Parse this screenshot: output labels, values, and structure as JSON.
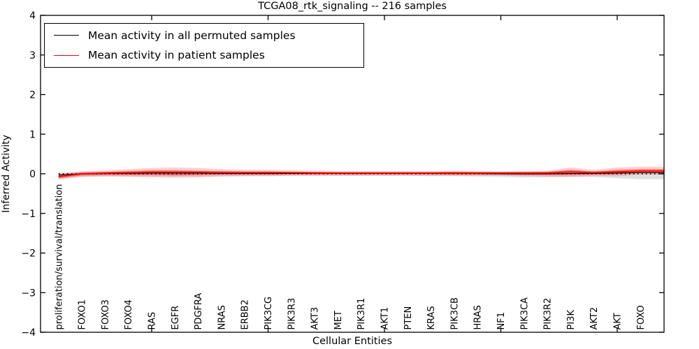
{
  "title": "TCGA08_rtk_signaling -- 216 samples",
  "legend": {
    "position": "upper left",
    "items": [
      {
        "label": "Mean activity in all permuted samples",
        "color": "#000000"
      },
      {
        "label": "Mean activity in patient samples",
        "color": "#ff0000"
      }
    ]
  },
  "chart_data": {
    "type": "line",
    "title": "TCGA08_rtk_signaling -- 216 samples",
    "xlabel": "Cellular Entities",
    "ylabel": "Inferred Activity",
    "ylim": [
      -4,
      4
    ],
    "grid": false,
    "legend_position": "upper left",
    "background_color": "#ffffff",
    "axis_color": "#000000",
    "yticks": [
      {
        "value": 4,
        "label": "4"
      },
      {
        "value": 3,
        "label": "3"
      },
      {
        "value": 2,
        "label": "2"
      },
      {
        "value": 1,
        "label": "1"
      },
      {
        "value": 0,
        "label": "0"
      },
      {
        "value": -1,
        "label": "−1"
      },
      {
        "value": -2,
        "label": "−2"
      },
      {
        "value": -3,
        "label": "−3"
      },
      {
        "value": -4,
        "label": "−4"
      }
    ],
    "x_major_tick_indices": [
      4,
      9,
      14,
      19,
      24
    ],
    "line_extends_to_right_edge": true,
    "categories": [
      "proliferation/survival/translation",
      "FOXO1",
      "FOXO3",
      "FOXO4",
      "RAS",
      "EGFR",
      "PDGFRA",
      "NRAS",
      "ERBB2",
      "PIK3CG",
      "PIK3R3",
      "AKT3",
      "MET",
      "PIK3R1",
      "AKT1",
      "PTEN",
      "KRAS",
      "PIK3CB",
      "HRAS",
      "NF1",
      "PIK3CA",
      "PIK3R2",
      "PI3K",
      "AKT2",
      "AKT",
      "FOXO"
    ],
    "series": [
      {
        "name": "Mean activity in all permuted samples",
        "color": "#000000",
        "values": [
          -0.03,
          0.0,
          0.01,
          0.01,
          0.02,
          0.02,
          0.02,
          0.01,
          0.01,
          0.01,
          0.01,
          0.01,
          0.01,
          0.01,
          0.01,
          0.01,
          0.01,
          0.01,
          0.01,
          0.0,
          0.0,
          0.0,
          0.01,
          0.01,
          0.02,
          0.03
        ]
      },
      {
        "name": "Mean activity in patient samples",
        "color": "#ff0000",
        "values": [
          -0.07,
          0.0,
          0.02,
          0.03,
          0.04,
          0.04,
          0.04,
          0.03,
          0.03,
          0.03,
          0.03,
          0.02,
          0.02,
          0.02,
          0.02,
          0.02,
          0.02,
          0.02,
          0.02,
          0.02,
          0.02,
          0.02,
          0.05,
          0.03,
          0.05,
          0.07
        ]
      }
    ],
    "bands": [
      {
        "name": "permutation-envelope",
        "color": "rgba(0,0,0,0.12)",
        "upper": [
          0.04,
          0.05,
          0.05,
          0.05,
          0.06,
          0.06,
          0.06,
          0.05,
          0.05,
          0.05,
          0.05,
          0.04,
          0.04,
          0.04,
          0.04,
          0.04,
          0.04,
          0.05,
          0.05,
          0.05,
          0.06,
          0.06,
          0.06,
          0.06,
          0.07,
          0.08
        ],
        "lower": [
          -0.12,
          -0.07,
          -0.06,
          -0.06,
          -0.07,
          -0.07,
          -0.07,
          -0.06,
          -0.06,
          -0.06,
          -0.05,
          -0.05,
          -0.05,
          -0.05,
          -0.05,
          -0.05,
          -0.06,
          -0.06,
          -0.07,
          -0.08,
          -0.09,
          -0.09,
          -0.08,
          -0.08,
          -0.11,
          -0.14
        ]
      },
      {
        "name": "patient-envelope-outer",
        "color": "rgba(255,0,0,0.18)",
        "upper": [
          0.0,
          0.06,
          0.09,
          0.12,
          0.15,
          0.16,
          0.15,
          0.12,
          0.1,
          0.1,
          0.09,
          0.08,
          0.07,
          0.07,
          0.07,
          0.07,
          0.07,
          0.08,
          0.07,
          0.06,
          0.07,
          0.08,
          0.16,
          0.1,
          0.16,
          0.18
        ],
        "lower": [
          -0.15,
          -0.08,
          -0.07,
          -0.08,
          -0.09,
          -0.1,
          -0.09,
          -0.07,
          -0.06,
          -0.06,
          -0.05,
          -0.05,
          -0.05,
          -0.05,
          -0.05,
          -0.05,
          -0.05,
          -0.05,
          -0.05,
          -0.05,
          -0.06,
          -0.07,
          -0.08,
          -0.06,
          -0.06,
          -0.02
        ]
      },
      {
        "name": "patient-envelope-inner",
        "color": "rgba(255,0,0,0.40)",
        "upper": [
          -0.03,
          0.03,
          0.05,
          0.07,
          0.09,
          0.09,
          0.08,
          0.07,
          0.06,
          0.06,
          0.05,
          0.05,
          0.04,
          0.04,
          0.04,
          0.04,
          0.04,
          0.05,
          0.04,
          0.04,
          0.04,
          0.05,
          0.1,
          0.06,
          0.1,
          0.12
        ],
        "lower": [
          -0.11,
          -0.04,
          -0.03,
          -0.03,
          -0.03,
          -0.04,
          -0.03,
          -0.02,
          -0.02,
          -0.02,
          -0.01,
          -0.01,
          -0.01,
          -0.01,
          -0.01,
          -0.01,
          -0.01,
          -0.02,
          -0.02,
          -0.02,
          -0.03,
          -0.03,
          -0.03,
          -0.02,
          -0.01,
          0.02
        ]
      }
    ],
    "zero_line": {
      "style": "dotted",
      "color": "#000000",
      "y": 0
    }
  }
}
